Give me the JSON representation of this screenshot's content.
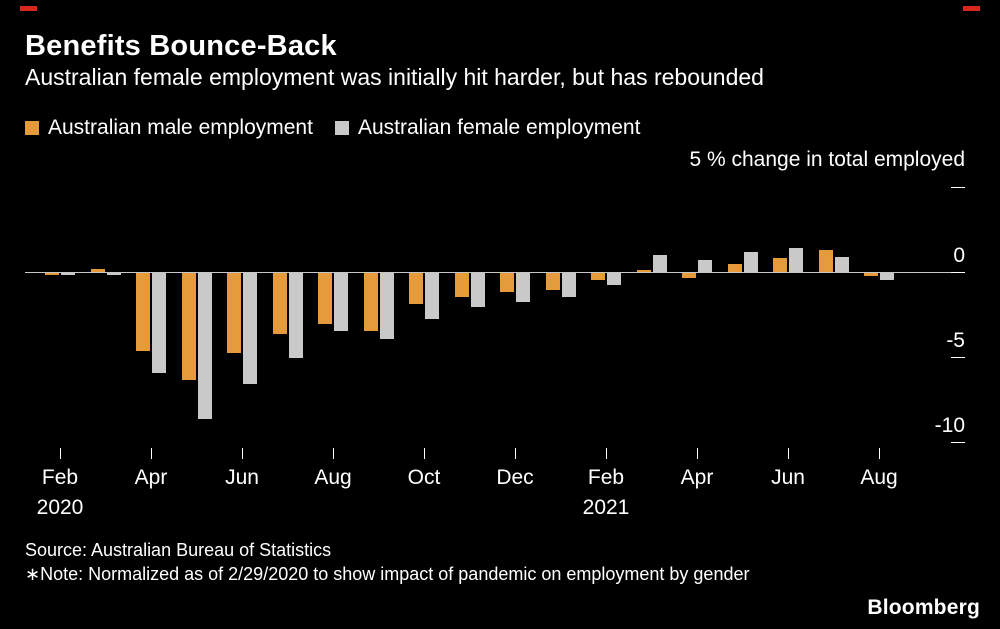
{
  "colors": {
    "background": "#000000",
    "accent_red": "#d8281e",
    "male": "#e59a3b",
    "female": "#c9c9c9",
    "zero_line": "#c7c7c7",
    "tick": "#ffffff",
    "text": "#ffffff"
  },
  "chart_data": {
    "type": "bar",
    "title": "Benefits Bounce-Back",
    "subtitle": "Australian female employment was initially hit harder, but has rebounded",
    "y_axis_note": "5 % change in total employed",
    "ylabel": "% change in total employed",
    "ylim": [
      -11,
      5
    ],
    "yticks": [
      5,
      0,
      -5,
      -10
    ],
    "grid": "zero-line-only",
    "legend_position": "top-left",
    "categories": [
      "Feb 2020",
      "Mar 2020",
      "Apr 2020",
      "May 2020",
      "Jun 2020",
      "Jul 2020",
      "Aug 2020",
      "Sep 2020",
      "Oct 2020",
      "Nov 2020",
      "Dec 2020",
      "Jan 2021",
      "Feb 2021",
      "Mar 2021",
      "Apr 2021",
      "May 2021",
      "Jun 2021",
      "Jul 2021",
      "Aug 2021"
    ],
    "x_ticks": [
      {
        "index": 0,
        "label": "Feb",
        "sub": "2020"
      },
      {
        "index": 2,
        "label": "Apr"
      },
      {
        "index": 4,
        "label": "Jun"
      },
      {
        "index": 6,
        "label": "Aug"
      },
      {
        "index": 8,
        "label": "Oct"
      },
      {
        "index": 10,
        "label": "Dec"
      },
      {
        "index": 12,
        "label": "Feb",
        "sub": "2021"
      },
      {
        "index": 14,
        "label": "Apr"
      },
      {
        "index": 16,
        "label": "Jun"
      },
      {
        "index": 18,
        "label": "Aug"
      }
    ],
    "series": [
      {
        "name": "Australian male employment",
        "color": "#e59a3b",
        "values": [
          -0.1,
          0.2,
          -4.6,
          -6.3,
          -4.7,
          -3.6,
          -3.0,
          -3.4,
          -1.8,
          -1.4,
          -1.1,
          -1.0,
          -0.4,
          0.1,
          -0.3,
          0.5,
          0.8,
          1.3,
          -0.2
        ]
      },
      {
        "name": "Australian female employment",
        "color": "#c9c9c9",
        "values": [
          -0.1,
          -0.1,
          -5.9,
          -8.6,
          -6.5,
          -5.0,
          -3.4,
          -3.9,
          -2.7,
          -2.0,
          -1.7,
          -1.4,
          -0.7,
          1.0,
          0.7,
          1.2,
          1.4,
          0.9,
          -0.4
        ]
      }
    ]
  },
  "footer": {
    "source": "Source: Australian Bureau of Statistics",
    "note": "∗Note: Normalized as of 2/29/2020 to show impact of pandemic on employment by gender",
    "logo": "Bloomberg"
  }
}
